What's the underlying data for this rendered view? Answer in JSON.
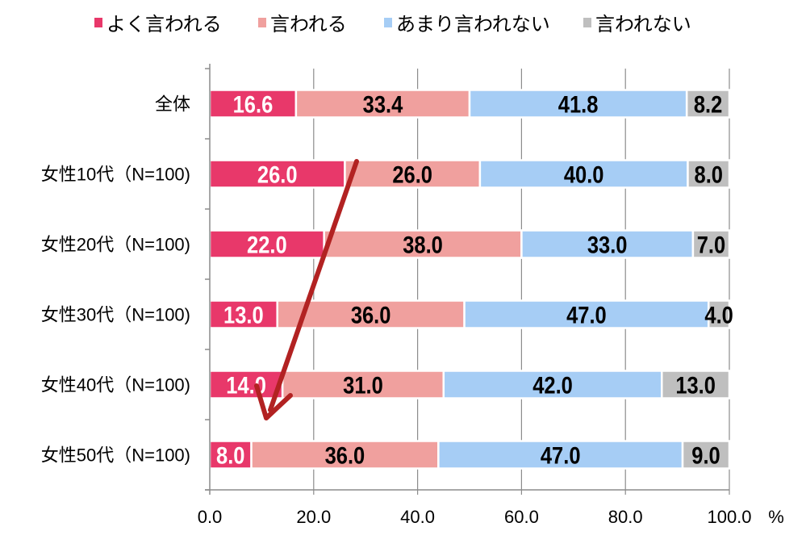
{
  "chart_data": {
    "type": "bar",
    "orientation": "horizontal",
    "stacked": true,
    "categories": [
      "全体",
      "女性10代（N=100)",
      "女性20代（N=100)",
      "女性30代（N=100)",
      "女性40代（N=100)",
      "女性50代（N=100)"
    ],
    "series": [
      {
        "name": "よく言われる",
        "color": "#e8386a",
        "label_color": "#ffffff",
        "values": [
          16.6,
          26.0,
          22.0,
          13.0,
          14.0,
          8.0
        ]
      },
      {
        "name": "言われる",
        "color": "#f0a09e",
        "label_color": "#000000",
        "values": [
          33.4,
          26.0,
          38.0,
          36.0,
          31.0,
          36.0
        ]
      },
      {
        "name": "あまり言われない",
        "color": "#a6cdf5",
        "label_color": "#000000",
        "values": [
          41.8,
          40.0,
          33.0,
          47.0,
          42.0,
          47.0
        ]
      },
      {
        "name": "言われない",
        "color": "#bfbfbf",
        "label_color": "#000000",
        "values": [
          8.2,
          8.0,
          7.0,
          4.0,
          13.0,
          9.0
        ]
      }
    ],
    "xlim": [
      0,
      100
    ],
    "xticks": [
      "0.0",
      "20.0",
      "40.0",
      "60.0",
      "80.0",
      "100.0"
    ],
    "xunit": "%",
    "grid": "vertical",
    "legend": "top",
    "annotation": {
      "type": "arrow",
      "color": "#b22222",
      "from_category": "女性10代（N=100)",
      "to_category": "女性50代（N=100)"
    }
  }
}
